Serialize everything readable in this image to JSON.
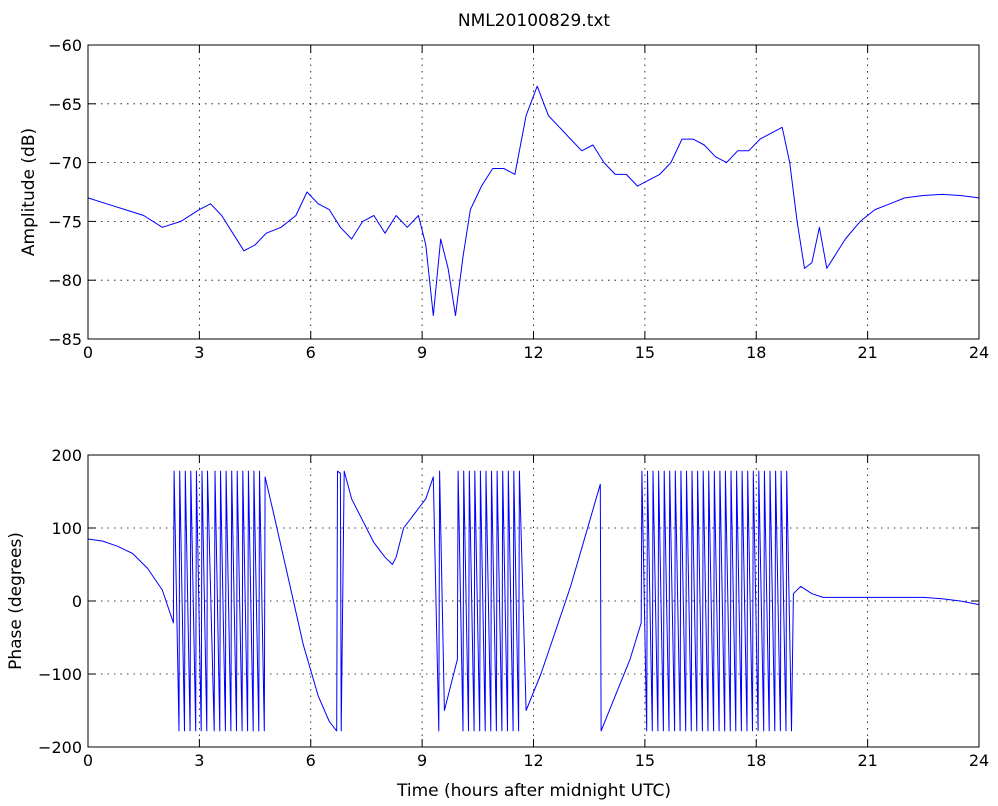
{
  "chart_data": [
    {
      "type": "line",
      "title": "NML20100829.txt",
      "xlabel": "",
      "ylabel": "Amplitude (dB)",
      "xlim": [
        0,
        24
      ],
      "ylim": [
        -85,
        -60
      ],
      "xticks": [
        0,
        3,
        6,
        9,
        12,
        15,
        18,
        21,
        24
      ],
      "yticks": [
        -85,
        -80,
        -75,
        -70,
        -65,
        -60
      ],
      "xtick_labels": [
        "0",
        "3",
        "6",
        "9",
        "12",
        "15",
        "18",
        "21",
        "24"
      ],
      "ytick_labels": [
        "−85",
        "−80",
        "−75",
        "−70",
        "−65",
        "−60"
      ],
      "grid": true,
      "color": "#0000ff",
      "series": [
        {
          "x": [
            0,
            0.5,
            1.0,
            1.5,
            2.0,
            2.5,
            3.0,
            3.3,
            3.6,
            3.9,
            4.2,
            4.5,
            4.8,
            5.2,
            5.6,
            5.9,
            6.2,
            6.5,
            6.8,
            7.1,
            7.4,
            7.7,
            8.0,
            8.3,
            8.6,
            8.9,
            9.1,
            9.3,
            9.5,
            9.7,
            9.9,
            10.1,
            10.3,
            10.6,
            10.9,
            11.2,
            11.5,
            11.8,
            12.1,
            12.4,
            12.7,
            13.0,
            13.3,
            13.6,
            13.9,
            14.2,
            14.5,
            14.8,
            15.1,
            15.4,
            15.7,
            16.0,
            16.3,
            16.6,
            16.9,
            17.2,
            17.5,
            17.8,
            18.1,
            18.4,
            18.7,
            18.9,
            19.1,
            19.3,
            19.5,
            19.7,
            19.9,
            20.1,
            20.4,
            20.8,
            21.2,
            21.6,
            22.0,
            22.5,
            23.0,
            23.5,
            24.0
          ],
          "values": [
            -73,
            -73.5,
            -74,
            -74.5,
            -75.5,
            -75,
            -74,
            -73.5,
            -74.5,
            -76,
            -77.5,
            -77,
            -76,
            -75.5,
            -74.5,
            -72.5,
            -73.5,
            -74,
            -75.5,
            -76.5,
            -75,
            -74.5,
            -76,
            -74.5,
            -75.5,
            -74.5,
            -77,
            -83,
            -76.5,
            -79,
            -83,
            -78,
            -74,
            -72,
            -70.5,
            -70.5,
            -71,
            -66,
            -63.5,
            -66,
            -67,
            -68,
            -69,
            -68.5,
            -70,
            -71,
            -71,
            -72,
            -71.5,
            -71,
            -70,
            -68,
            -68,
            -68.5,
            -69.5,
            -70,
            -69,
            -69,
            -68,
            -67.5,
            -67,
            -70,
            -75,
            -79,
            -78.5,
            -75.5,
            -79,
            -78,
            -76.5,
            -75,
            -74,
            -73.5,
            -73,
            -72.8,
            -72.7,
            -72.8,
            -73
          ]
        }
      ]
    },
    {
      "type": "line",
      "title": "",
      "xlabel": "Time (hours after midnight UTC)",
      "ylabel": "Phase (degrees)",
      "xlim": [
        0,
        24
      ],
      "ylim": [
        -200,
        200
      ],
      "xticks": [
        0,
        3,
        6,
        9,
        12,
        15,
        18,
        21,
        24
      ],
      "yticks": [
        -200,
        -100,
        0,
        100,
        200
      ],
      "xtick_labels": [
        "0",
        "3",
        "6",
        "9",
        "12",
        "15",
        "18",
        "21",
        "24"
      ],
      "ytick_labels": [
        "−200",
        "−100",
        "0",
        "100",
        "200"
      ],
      "grid": true,
      "color": "#0000ff",
      "series": [
        {
          "x": [
            0,
            0.4,
            0.8,
            1.2,
            1.6,
            2.0,
            2.3,
            2.32,
            2.45,
            2.47,
            2.6,
            2.62,
            2.75,
            2.77,
            2.9,
            2.92,
            3.05,
            3.07,
            3.2,
            3.22,
            3.4,
            3.42,
            3.55,
            3.57,
            3.7,
            3.72,
            3.85,
            3.87,
            4.0,
            4.02,
            4.15,
            4.17,
            4.3,
            4.32,
            4.45,
            4.47,
            4.6,
            4.62,
            4.75,
            4.77,
            5.0,
            5.4,
            5.8,
            6.2,
            6.5,
            6.7,
            6.72,
            6.8,
            6.82,
            6.9,
            7.1,
            7.4,
            7.7,
            8.0,
            8.2,
            8.3,
            8.5,
            8.8,
            9.1,
            9.3,
            9.45,
            9.47,
            9.6,
            9.8,
            9.95,
            9.97,
            10.1,
            10.12,
            10.25,
            10.27,
            10.4,
            10.42,
            10.55,
            10.57,
            10.7,
            10.72,
            10.85,
            10.87,
            11.0,
            11.02,
            11.15,
            11.17,
            11.3,
            11.32,
            11.45,
            11.47,
            11.6,
            11.62,
            11.8,
            12.2,
            12.6,
            13.0,
            13.4,
            13.8,
            13.82,
            14.2,
            14.6,
            14.9,
            14.92,
            15.05,
            15.07,
            15.2,
            15.22,
            15.35,
            15.37,
            15.5,
            15.52,
            15.65,
            15.67,
            15.8,
            15.82,
            15.95,
            15.97,
            16.1,
            16.12,
            16.25,
            16.27,
            16.4,
            16.42,
            16.55,
            16.57,
            16.7,
            16.72,
            16.85,
            16.87,
            17.0,
            17.02,
            17.15,
            17.17,
            17.3,
            17.32,
            17.45,
            17.47,
            17.6,
            17.62,
            17.75,
            17.77,
            17.9,
            17.92,
            18.05,
            18.07,
            18.2,
            18.22,
            18.35,
            18.37,
            18.5,
            18.52,
            18.65,
            18.67,
            18.8,
            18.82,
            18.95,
            19.0,
            19.2,
            19.5,
            19.8,
            20.2,
            20.6,
            21.0,
            21.5,
            22.0,
            22.5,
            23.0,
            23.5,
            24.0
          ],
          "values": [
            85,
            82,
            75,
            65,
            45,
            15,
            -30,
            178,
            -178,
            178,
            -178,
            178,
            -178,
            178,
            -178,
            178,
            -178,
            178,
            -178,
            178,
            -178,
            178,
            -178,
            178,
            -178,
            178,
            -178,
            178,
            -178,
            178,
            -178,
            178,
            -178,
            178,
            -178,
            178,
            -178,
            178,
            -178,
            170,
            120,
            30,
            -60,
            -130,
            -165,
            -178,
            178,
            175,
            -178,
            178,
            140,
            110,
            80,
            60,
            50,
            60,
            100,
            120,
            140,
            170,
            -178,
            178,
            -150,
            -110,
            -80,
            178,
            -178,
            178,
            -178,
            178,
            -178,
            178,
            -178,
            178,
            -178,
            178,
            -178,
            178,
            -178,
            178,
            -178,
            178,
            -178,
            178,
            -178,
            178,
            -178,
            178,
            -150,
            -100,
            -40,
            20,
            90,
            160,
            -178,
            -130,
            -80,
            -30,
            178,
            -178,
            178,
            -178,
            178,
            -178,
            178,
            -178,
            178,
            -178,
            178,
            -178,
            178,
            -178,
            178,
            -178,
            178,
            -178,
            178,
            -178,
            178,
            -178,
            178,
            -178,
            178,
            -178,
            178,
            -178,
            178,
            -178,
            178,
            -178,
            178,
            -178,
            178,
            -178,
            178,
            -178,
            178,
            -178,
            178,
            -178,
            178,
            -178,
            178,
            -178,
            178,
            -178,
            178,
            -178,
            178,
            -178,
            178,
            -178,
            10,
            20,
            10,
            5,
            5,
            5,
            5,
            5,
            5,
            5,
            3,
            0,
            -5
          ]
        }
      ]
    }
  ]
}
